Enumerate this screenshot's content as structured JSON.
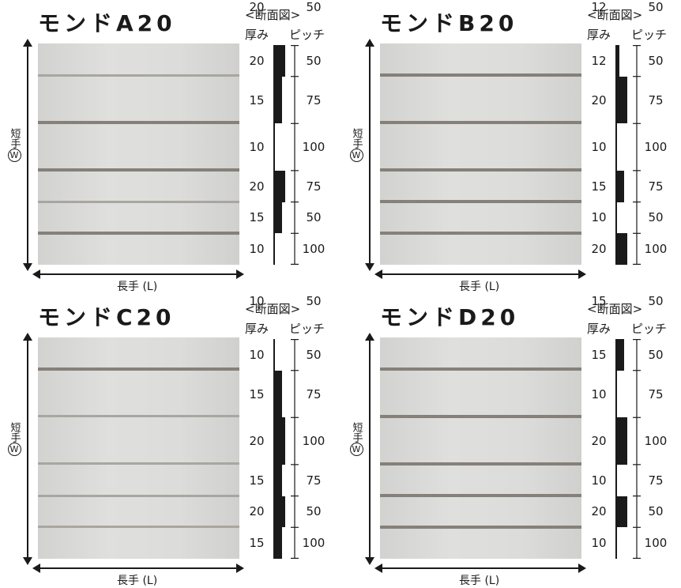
{
  "colors": {
    "ink": "#1a1a1a",
    "panel_face": "#dcdcda",
    "deep_groove": "#858079",
    "shallow_groove": "#f3f3f1"
  },
  "section_header": "<断面図>",
  "header_thickness": "厚み",
  "header_pitch": "ピッチ",
  "width_label": "短手",
  "width_symbol": "W",
  "length_label": "長手 (L)",
  "panels": [
    {
      "title": "モンドA20",
      "thickness": [
        "20",
        "15",
        "10",
        "20",
        "15",
        "10",
        "20"
      ],
      "pitch": [
        "50",
        "75",
        "100",
        "75",
        "50",
        "100",
        "50"
      ]
    },
    {
      "title": "モンドB20",
      "thickness": [
        "12",
        "20",
        "10",
        "15",
        "10",
        "20",
        "12"
      ],
      "pitch": [
        "50",
        "75",
        "100",
        "75",
        "50",
        "100",
        "50"
      ]
    },
    {
      "title": "モンドC20",
      "thickness": [
        "10",
        "15",
        "20",
        "15",
        "20",
        "15",
        "10"
      ],
      "pitch": [
        "50",
        "75",
        "100",
        "75",
        "50",
        "100",
        "50"
      ]
    },
    {
      "title": "モンドD20",
      "thickness": [
        "15",
        "10",
        "20",
        "10",
        "20",
        "10",
        "15"
      ],
      "pitch": [
        "50",
        "75",
        "100",
        "75",
        "50",
        "100",
        "50"
      ]
    }
  ]
}
